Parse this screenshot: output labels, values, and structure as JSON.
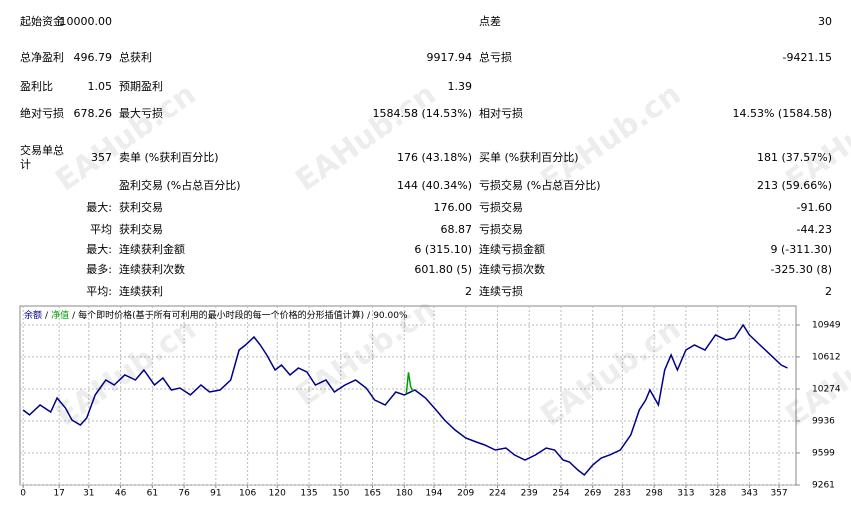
{
  "table": {
    "rows": [
      [
        "起始资金",
        "10000.00",
        null,
        null,
        "点差",
        "30"
      ],
      [
        "总净盈利",
        "496.79",
        "总获利",
        "9917.94",
        "总亏损",
        "-9421.15"
      ],
      [
        "盈利比",
        "1.05",
        "预期盈利",
        "1.39",
        null,
        null
      ],
      [
        "绝对亏损",
        "678.26",
        "最大亏损",
        "1584.58 (14.53%)",
        "相对亏损",
        "14.53% (1584.58)"
      ],
      [
        "交易单总计",
        "357",
        "卖单 (%获利百分比)",
        "176 (43.18%)",
        "买单 (%获利百分比)",
        "181 (37.57%)"
      ],
      [
        null,
        null,
        "盈利交易 (%占总百分比)",
        "144 (40.34%)",
        "亏损交易 (%占总百分比)",
        "213 (59.66%)"
      ],
      [
        null,
        "最大:",
        "获利交易",
        "176.00",
        "亏损交易",
        "-91.60"
      ],
      [
        null,
        "平均",
        "获利交易",
        "68.87",
        "亏损交易",
        "-44.23"
      ],
      [
        null,
        "最大:",
        "连续获利金额",
        "6 (315.10)",
        "连续亏损金额",
        "9 (-311.30)"
      ],
      [
        null,
        "最多:",
        "连续获利次数",
        "601.80 (5)",
        "连续亏损次数",
        "-325.30 (8)"
      ],
      [
        null,
        "平均:",
        "连续获利",
        "2",
        "连续亏损",
        "2"
      ]
    ]
  },
  "watermark": "EAHub.cn",
  "chart_data": {
    "type": "line",
    "separator": "/",
    "subtitle": "每个即时价格(基于所有可利用的最小时段的每一个价格的分形插值计算)",
    "quality": "90.00%",
    "series": [
      {
        "name": "余额",
        "color": "#00008b",
        "x": [
          0,
          3,
          8,
          13,
          16,
          20,
          23,
          27,
          30,
          34,
          39,
          43,
          48,
          53,
          57,
          62,
          66,
          70,
          74,
          79,
          84,
          88,
          93,
          98,
          102,
          105,
          109,
          112,
          115,
          119,
          122,
          126,
          130,
          134,
          138,
          143,
          147,
          152,
          157,
          162,
          166,
          171,
          176,
          180,
          185,
          190,
          195,
          199,
          204,
          209,
          214,
          218,
          223,
          228,
          232,
          237,
          242,
          247,
          251,
          255,
          258,
          262,
          265,
          269,
          273,
          277,
          282,
          287,
          291,
          294,
          296,
          300,
          303,
          306,
          309,
          313,
          317,
          322,
          327,
          332,
          336,
          340,
          343,
          348,
          353,
          358,
          361
        ],
        "values": [
          10052,
          10000,
          10105,
          10031,
          10179,
          10073,
          9947,
          9894,
          9968,
          10211,
          10369,
          10316,
          10422,
          10369,
          10474,
          10316,
          10390,
          10263,
          10284,
          10211,
          10316,
          10242,
          10263,
          10369,
          10685,
          10738,
          10822,
          10738,
          10633,
          10474,
          10527,
          10422,
          10495,
          10453,
          10316,
          10369,
          10242,
          10316,
          10369,
          10284,
          10158,
          10105,
          10242,
          10211,
          10263,
          10179,
          10052,
          9947,
          9841,
          9757,
          9715,
          9683,
          9630,
          9651,
          9578,
          9525,
          9578,
          9651,
          9630,
          9525,
          9504,
          9419,
          9367,
          9472,
          9546,
          9578,
          9630,
          9789,
          10052,
          10158,
          10263,
          10105,
          10474,
          10633,
          10474,
          10685,
          10738,
          10685,
          10844,
          10791,
          10812,
          10949,
          10844,
          10738,
          10633,
          10527,
          10495
        ]
      },
      {
        "name": "净值",
        "color": "#00a000",
        "x": [
          181,
          182,
          183,
          184
        ],
        "values": [
          10230,
          10450,
          10300,
          10250
        ]
      }
    ],
    "xlim": [
      -1.5,
      365
    ],
    "xticks": [
      0,
      17,
      31,
      46,
      61,
      76,
      91,
      106,
      120,
      135,
      150,
      165,
      180,
      194,
      209,
      224,
      239,
      254,
      269,
      283,
      298,
      313,
      328,
      343,
      357
    ],
    "ylim": [
      9261,
      11149
    ],
    "yticks": [
      9261,
      9599,
      9936,
      10274,
      10612,
      10949
    ],
    "grid": true
  }
}
